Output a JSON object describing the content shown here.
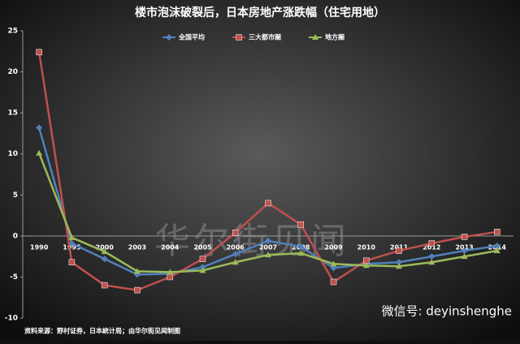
{
  "chart_data": {
    "type": "line",
    "title": "楼市泡沫破裂后，日本房地产涨跌幅（住宅用地）",
    "categories": [
      "1990",
      "1995",
      "2000",
      "2003",
      "2004",
      "2005",
      "2006",
      "2007",
      "2008",
      "2009",
      "2010",
      "2011",
      "2012",
      "2013",
      "2014"
    ],
    "series": [
      {
        "name": "全国平均",
        "color": "#4f81bd",
        "marker": "diamond",
        "values": [
          13.2,
          -0.9,
          -2.8,
          -4.7,
          -4.6,
          -3.8,
          -2.2,
          -0.6,
          -1.3,
          -3.9,
          -3.4,
          -3.2,
          -2.5,
          -1.8,
          -1.2
        ]
      },
      {
        "name": "三大都市圈",
        "color": "#c0504d",
        "marker": "square",
        "values": [
          22.4,
          -3.2,
          -6.0,
          -6.6,
          -5.0,
          -2.8,
          0.4,
          4.0,
          1.4,
          -5.6,
          -3.0,
          -1.8,
          -0.9,
          -0.1,
          0.5
        ]
      },
      {
        "name": "地方圈",
        "color": "#9bbb59",
        "marker": "triangle",
        "values": [
          10.1,
          -0.2,
          -1.9,
          -4.3,
          -4.4,
          -4.2,
          -3.2,
          -2.3,
          -2.1,
          -3.4,
          -3.6,
          -3.7,
          -3.2,
          -2.5,
          -1.8
        ]
      }
    ],
    "ylim": [
      -10,
      25
    ],
    "yticks": [
      -10,
      -5,
      0,
      5,
      10,
      15,
      20,
      25
    ],
    "grid": false,
    "legend": "top",
    "source": "资料来源：野村证券，日本統计局；由华尔街见闻制图"
  },
  "watermark": "华尔街见闻",
  "wechat": "微信号: deyinshenghe"
}
